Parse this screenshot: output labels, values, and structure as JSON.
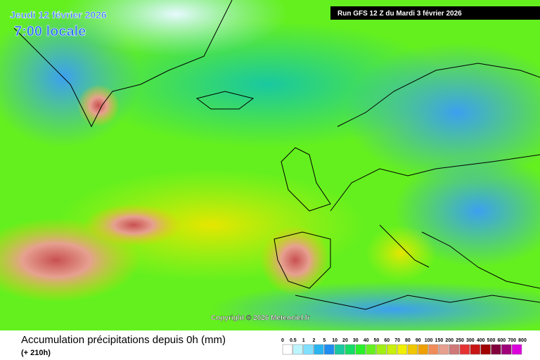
{
  "header": {
    "date": "Jeudi 12 février 2026",
    "time": "7:00 locale",
    "run": "Run GFS 12 Z du Mardi 3 février 2026"
  },
  "copyright": "Copyright © 2026 Meteociel.fr",
  "footer": {
    "title": "Accumulation précipitations depuis 0h (mm)",
    "lead": "(+ 210h)"
  },
  "legend": {
    "labels": [
      0,
      0.5,
      1,
      2,
      5,
      10,
      20,
      30,
      40,
      50,
      60,
      70,
      80,
      90,
      100,
      150,
      200,
      250,
      300,
      400,
      500,
      600,
      700,
      800
    ],
    "colors": [
      "#ffffff",
      "#bdf5ff",
      "#7fe0ff",
      "#28b4f0",
      "#1e8cf0",
      "#19c8a0",
      "#14dc64",
      "#28f028",
      "#64f01e",
      "#a0f014",
      "#c8f00a",
      "#f0f000",
      "#f0c800",
      "#f0a000",
      "#f08c5a",
      "#e6a090",
      "#d07878",
      "#e63232",
      "#c81414",
      "#a00000",
      "#82003c",
      "#a0007a",
      "#dc00dc"
    ]
  }
}
